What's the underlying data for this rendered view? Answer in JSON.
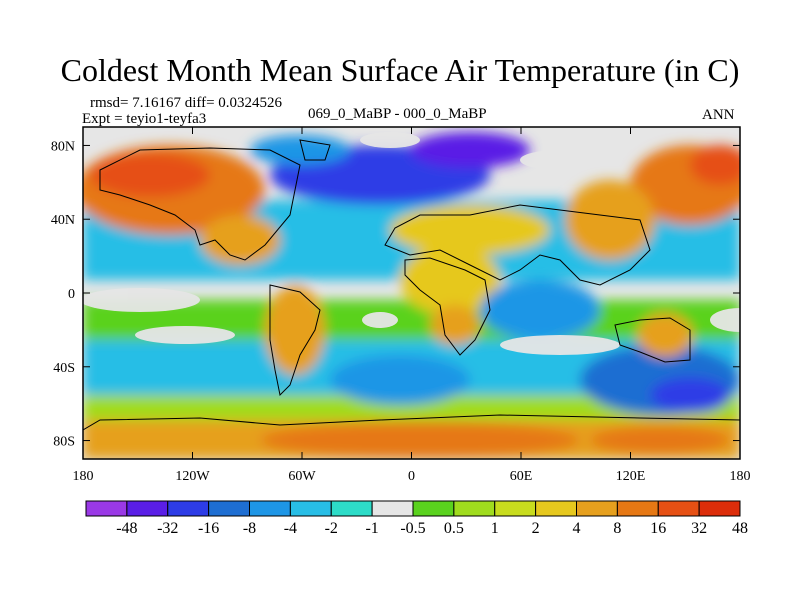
{
  "header": {
    "title": "Coldest Month Mean Surface Air Temperature (in C)",
    "rmsd_line": "rmsd= 7.16167 diff= 0.0324526",
    "expt_line": "Expt = teyio1-teyfa3",
    "center_label": "069_0_MaBP - 000_0_MaBP",
    "season_label": "ANN"
  },
  "map": {
    "projection": "cylindrical equidistant",
    "lon_range": [
      -180,
      180
    ],
    "lat_range": [
      -90,
      90
    ],
    "x_ticks": [
      {
        "value": -180,
        "label": "180"
      },
      {
        "value": -120,
        "label": "120W"
      },
      {
        "value": -60,
        "label": "60W"
      },
      {
        "value": 0,
        "label": "0"
      },
      {
        "value": 60,
        "label": "60E"
      },
      {
        "value": 120,
        "label": "120E"
      },
      {
        "value": 180,
        "label": "180"
      }
    ],
    "y_ticks": [
      {
        "value": 80,
        "label": "80N"
      },
      {
        "value": 40,
        "label": "40N"
      },
      {
        "value": 0,
        "label": "0"
      },
      {
        "value": -40,
        "label": "40S"
      },
      {
        "value": -80,
        "label": "80S"
      }
    ],
    "no_change_color": "#e6e6e6"
  },
  "colorbar": {
    "colors": [
      "#9a39e6",
      "#5a1ee6",
      "#2d3ce6",
      "#1e6ed2",
      "#1e96e6",
      "#28bee6",
      "#2ddcc8",
      "#e6e6e6",
      "#5ad21e",
      "#a0dc1e",
      "#c8dc1e",
      "#e6c81e",
      "#e6a01e",
      "#e67814",
      "#e65014",
      "#dc2d0a"
    ],
    "labels": [
      "-48",
      "-32",
      "-16",
      "-8",
      "-4",
      "-2",
      "-1",
      "-0.5",
      "0.5",
      "1",
      "2",
      "4",
      "8",
      "16",
      "32",
      "48"
    ]
  }
}
